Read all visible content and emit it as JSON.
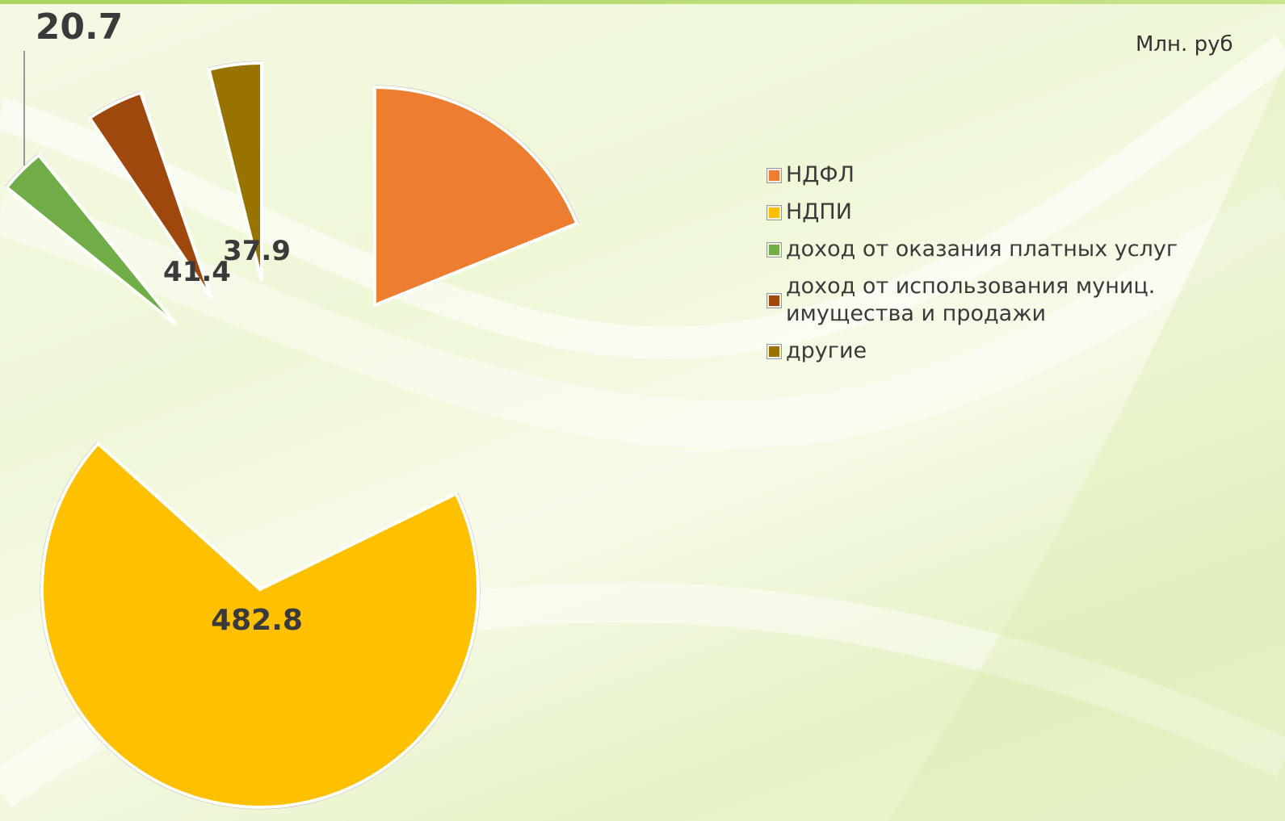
{
  "unit_label": "Млн. руб",
  "chart_data": {
    "type": "pie",
    "exploded": true,
    "labels": [
      "НДФЛ",
      "НДПИ",
      "доход от оказания платных услуг",
      "доход от использования муниц. имущества и продажи",
      "другие"
    ],
    "values": [
      null,
      482.8,
      20.7,
      41.4,
      37.9
    ],
    "data_labels": [
      "",
      "482.8",
      "20.7",
      "41.4",
      "37.9"
    ],
    "colors": [
      "#ED7D31",
      "#FFC000",
      "#70AD47",
      "#9E480E",
      "#997300"
    ],
    "legend_position": "right"
  },
  "legend": {
    "items": [
      {
        "label": "НДФЛ",
        "color": "#ED7D31"
      },
      {
        "label": "НДПИ",
        "color": "#FFC000"
      },
      {
        "label": "доход от оказания платных услуг",
        "color": "#70AD47"
      },
      {
        "label": "доход от использования муниц. имущества и продажи",
        "color": "#9E480E"
      },
      {
        "label": "другие",
        "color": "#997300"
      }
    ]
  }
}
